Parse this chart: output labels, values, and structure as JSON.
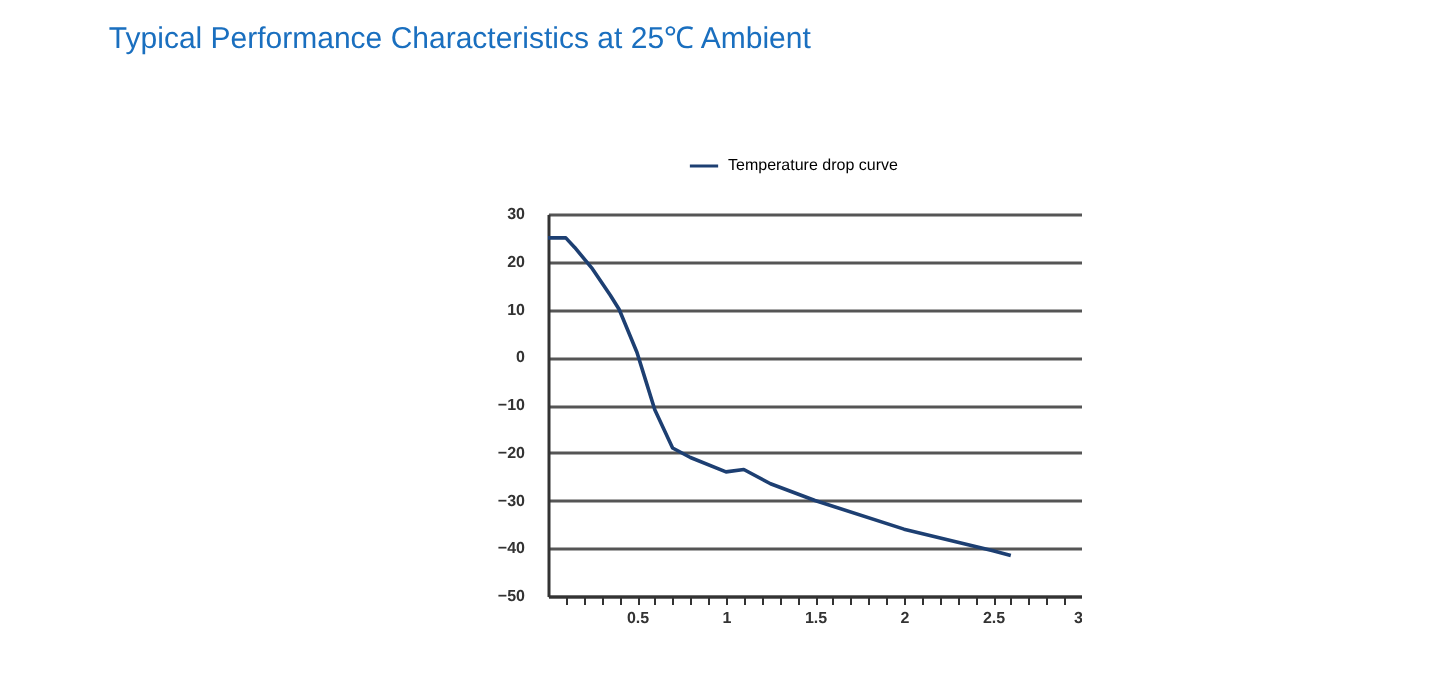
{
  "chart_data": {
    "type": "line",
    "title": "Typical Performance Characteristics  at 25℃ Ambient",
    "x": [
      0,
      0.1,
      0.15,
      0.25,
      0.35,
      0.4,
      0.5,
      0.55,
      0.6,
      0.7,
      0.8,
      1.0,
      1.1,
      1.25,
      1.5,
      2.0,
      2.5,
      2.6
    ],
    "series": [
      {
        "name": "Temperature drop curve",
        "color": "#1d3f72",
        "values": [
          25,
          25,
          23,
          18.5,
          13,
          10,
          1,
          -5,
          -11,
          -19,
          -21,
          -24,
          -23.5,
          -26.5,
          -30,
          -36,
          -40.5,
          -41.5
        ]
      }
    ],
    "xlim": [
      0,
      3
    ],
    "xticks": [
      {
        "value": 0.1,
        "label": null
      },
      {
        "value": 0.2,
        "label": null
      },
      {
        "value": 0.3,
        "label": null
      },
      {
        "value": 0.4,
        "label": null
      },
      0.5,
      {
        "value": 0.6,
        "label": null
      },
      {
        "value": 0.7,
        "label": null
      },
      {
        "value": 0.8,
        "label": null
      },
      {
        "value": 0.9,
        "label": null
      },
      1,
      {
        "value": 1.1,
        "label": null
      },
      {
        "value": 1.2,
        "label": null
      },
      {
        "value": 1.3,
        "label": null
      },
      {
        "value": 1.4,
        "label": null
      },
      1.5,
      {
        "value": 1.6,
        "label": null
      },
      {
        "value": 1.7,
        "label": null
      },
      {
        "value": 1.8,
        "label": null
      },
      {
        "value": 1.9,
        "label": null
      },
      2,
      {
        "value": 2.1,
        "label": null
      },
      {
        "value": 2.2,
        "label": null
      },
      {
        "value": 2.3,
        "label": null
      },
      {
        "value": 2.4,
        "label": null
      },
      2.5,
      {
        "value": 2.6,
        "label": null
      },
      {
        "value": 2.7,
        "label": null
      },
      {
        "value": 2.8,
        "label": null
      },
      {
        "value": 2.9,
        "label": null
      },
      3
    ],
    "ylim": [
      -50,
      30
    ],
    "yticks": [
      -50,
      -40,
      -30,
      -20,
      -10,
      0,
      10,
      20,
      30
    ],
    "grid": "y",
    "legend": "top",
    "marker": "none",
    "line_style": "solid"
  }
}
